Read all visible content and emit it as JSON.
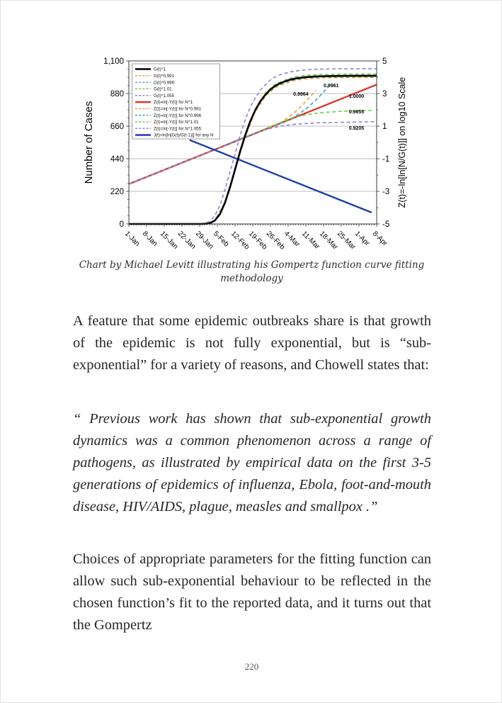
{
  "page": {
    "number": "220"
  },
  "figure": {
    "caption": "Chart by Michael Levitt illustrating his Gompertz function curve fitting methodology"
  },
  "paragraphs": {
    "p1": "A feature that some epidemic outbreaks share is that growth of the epidemic is not fully exponential, but is “sub-exponential” for a variety of reasons, and Chowell states that:",
    "quote": "“ Previous work has shown that sub-exponential growth dynamics was a common phenomenon across a range of pathogens, as illustrated by empirical data on the first 3-5 generations of epidemics of influenza, Ebola, foot-and-mouth disease, HIV/AIDS, plague, measles and smallpox .”",
    "p3": "Choices of appropriate parameters for the fitting function can allow such sub-exponential behaviour to be reflected in the chosen function’s fit to the reported data, and it turns out that the Gompertz"
  },
  "chart_data": {
    "type": "line",
    "x_axis": {
      "labels": [
        "1-Jan",
        "8-Jan",
        "15-Jan",
        "22-Jan",
        "29-Jan",
        "5-Feb",
        "12-Feb",
        "19-Feb",
        "26-Feb",
        "4-Mar",
        "11-Mar",
        "18-Mar",
        "25-Mar",
        "1-Apr",
        "8-Apr"
      ],
      "range_days": [
        0,
        98
      ],
      "major_step_days": 7,
      "minor_step_days": 1
    },
    "y_left": {
      "title": "Number of Cases",
      "tick_labels": [
        "0",
        "220",
        "440",
        "660",
        "880",
        "1,100"
      ],
      "tick_values": [
        0,
        220,
        440,
        660,
        880,
        1100
      ],
      "grid_values": [
        220,
        440,
        660,
        880
      ],
      "minor_step": 55,
      "range": [
        0,
        1100
      ]
    },
    "y_right": {
      "title": "Z(t)=-ln[ln[N/G(t)]] on log10 Scale",
      "tick_labels": [
        "-5",
        "-3",
        "-1",
        "1",
        "3",
        "5"
      ],
      "tick_values": [
        -5,
        -3,
        -1,
        1,
        3,
        5
      ],
      "minor_values": [
        -4,
        -2,
        0,
        2,
        4
      ],
      "range": [
        -5,
        5
      ]
    },
    "grid": "horizontal-only",
    "legend_position": "upper-left-inside",
    "series": [
      {
        "name": "G(t)^1",
        "color": "#000000",
        "width": 2.6,
        "dash": null,
        "axis": "cases",
        "draw": 11,
        "points": [
          [
            0,
            0
          ],
          [
            20,
            0
          ],
          [
            26,
            0
          ],
          [
            28,
            0
          ],
          [
            30,
            1
          ],
          [
            32,
            5
          ],
          [
            34,
            23
          ],
          [
            36,
            66
          ],
          [
            38,
            143
          ],
          [
            40,
            248
          ],
          [
            42,
            368
          ],
          [
            44,
            489
          ],
          [
            46,
            598
          ],
          [
            48,
            692
          ],
          [
            50,
            768
          ],
          [
            52,
            828
          ],
          [
            54,
            873
          ],
          [
            56,
            908
          ],
          [
            58,
            933
          ],
          [
            60,
            951
          ],
          [
            63,
            970
          ],
          [
            66,
            982
          ],
          [
            70,
            991
          ],
          [
            75,
            996
          ],
          [
            80,
            998
          ],
          [
            86,
            999
          ],
          [
            92,
            1000
          ],
          [
            98,
            1000
          ]
        ]
      },
      {
        "name": "G(t)^0.991",
        "color": "#E9A23B",
        "width": 1.6,
        "dash": "5,3.5",
        "axis": "cases",
        "draw": 10,
        "points": [
          [
            0,
            0
          ],
          [
            26,
            0
          ],
          [
            30,
            1
          ],
          [
            34,
            22
          ],
          [
            38,
            141
          ],
          [
            42,
            364
          ],
          [
            46,
            591
          ],
          [
            50,
            759
          ],
          [
            54,
            862
          ],
          [
            58,
            922
          ],
          [
            62,
            950
          ],
          [
            66,
            970
          ],
          [
            70,
            979
          ],
          [
            76,
            985
          ],
          [
            84,
            987
          ],
          [
            92,
            988
          ],
          [
            98,
            988
          ]
        ]
      },
      {
        "name": "G(t)^0.996",
        "color": "#5FA8DC",
        "width": 1.6,
        "dash": "5,3.5",
        "axis": "cases",
        "draw": 9,
        "points": [
          [
            0,
            0
          ],
          [
            26,
            0
          ],
          [
            30,
            1
          ],
          [
            34,
            23
          ],
          [
            38,
            142
          ],
          [
            42,
            366
          ],
          [
            46,
            595
          ],
          [
            50,
            764
          ],
          [
            54,
            869
          ],
          [
            58,
            928
          ],
          [
            62,
            957
          ],
          [
            66,
            977
          ],
          [
            70,
            986
          ],
          [
            76,
            992
          ],
          [
            84,
            994
          ],
          [
            92,
            995
          ],
          [
            98,
            995
          ]
        ]
      },
      {
        "name": "G(t)^1.01",
        "color": "#63D24B",
        "width": 1.6,
        "dash": "5,3.5",
        "axis": "cases",
        "draw": 8,
        "points": [
          [
            0,
            0
          ],
          [
            26,
            0
          ],
          [
            30,
            1
          ],
          [
            34,
            23
          ],
          [
            38,
            145
          ],
          [
            42,
            372
          ],
          [
            46,
            605
          ],
          [
            50,
            777
          ],
          [
            54,
            883
          ],
          [
            58,
            944
          ],
          [
            62,
            973
          ],
          [
            66,
            994
          ],
          [
            70,
            1003
          ],
          [
            76,
            1009
          ],
          [
            84,
            1011
          ],
          [
            92,
            1012
          ],
          [
            98,
            1012
          ]
        ]
      },
      {
        "name": "G(t)^1.055",
        "color": "#9583D6",
        "width": 1.6,
        "dash": "5,3.5",
        "axis": "cases",
        "draw": 7,
        "points": [
          [
            0,
            0
          ],
          [
            24,
            0
          ],
          [
            28,
            1
          ],
          [
            30,
            3
          ],
          [
            32,
            17
          ],
          [
            34,
            55
          ],
          [
            36,
            126
          ],
          [
            38,
            230
          ],
          [
            40,
            353
          ],
          [
            42,
            470
          ],
          [
            44,
            600
          ],
          [
            46,
            702
          ],
          [
            48,
            787
          ],
          [
            50,
            850
          ],
          [
            52,
            904
          ],
          [
            54,
            940
          ],
          [
            56,
            972
          ],
          [
            58,
            992
          ],
          [
            60,
            1008
          ],
          [
            64,
            1027
          ],
          [
            68,
            1037
          ],
          [
            74,
            1044
          ],
          [
            84,
            1047
          ],
          [
            98,
            1048
          ]
        ]
      },
      {
        "name": "Z(t)=ln[-Y(t)] for N^1",
        "color": "#D43A2F",
        "width": 2.4,
        "dash": null,
        "axis": "z",
        "draw": 1,
        "points": [
          [
            0,
            -2.55
          ],
          [
            98,
            3.55
          ]
        ]
      },
      {
        "name": "Z(t)=ln[-Y(t)] for N^0.991",
        "color": "#E9A23B",
        "width": 1.6,
        "dash": "5,3.5",
        "axis": "z",
        "draw": 3,
        "points": [
          [
            0,
            -2.55
          ],
          [
            56,
            0.95
          ],
          [
            60,
            1.22
          ],
          [
            63,
            1.52
          ],
          [
            66,
            1.9
          ],
          [
            69,
            2.35
          ],
          [
            72,
            2.85
          ],
          [
            74,
            3.2
          ]
        ]
      },
      {
        "name": "Z(t)=ln[-Y(t)] for N^0.996",
        "color": "#3FA5B5",
        "width": 1.6,
        "dash": "5,3.5",
        "axis": "z",
        "draw": 2,
        "points": [
          [
            0,
            -2.55
          ],
          [
            62,
            1.3
          ],
          [
            66,
            1.62
          ],
          [
            70,
            2.05
          ],
          [
            74,
            2.6
          ],
          [
            77,
            3.1
          ],
          [
            79,
            3.45
          ]
        ]
      },
      {
        "name": "Z(t)=ln[-Y(t)] for N^1.01",
        "color": "#63D24B",
        "width": 1.6,
        "dash": "5,3.5",
        "axis": "z",
        "draw": 4,
        "points": [
          [
            0,
            -2.55
          ],
          [
            54,
            0.85
          ],
          [
            58,
            1.1
          ],
          [
            62,
            1.35
          ],
          [
            66,
            1.55
          ],
          [
            70,
            1.7
          ],
          [
            76,
            1.83
          ],
          [
            84,
            1.91
          ],
          [
            96,
            1.97
          ]
        ]
      },
      {
        "name": "Z(t)=ln[-Y(t)] for N^1.055",
        "color": "#9583D6",
        "width": 1.6,
        "dash": "5,3.5",
        "axis": "z",
        "draw": 5,
        "points": [
          [
            0,
            -2.55
          ],
          [
            48,
            0.45
          ],
          [
            52,
            0.68
          ],
          [
            56,
            0.86
          ],
          [
            60,
            1.0
          ],
          [
            66,
            1.12
          ],
          [
            74,
            1.2
          ],
          [
            98,
            1.28
          ]
        ]
      },
      {
        "name": "J(t)=ln[ln[G(t)/G(t-1)]] for any N",
        "color": "#1F3FA8",
        "width": 2.4,
        "dash": null,
        "axis": "z",
        "draw": 6,
        "points": [
          [
            24,
            0.15
          ],
          [
            96,
            -4.3
          ]
        ]
      }
    ],
    "annotations": [
      {
        "text": "0.9964",
        "t": 68,
        "z": 2.96
      },
      {
        "text": "0.9961",
        "t": 80,
        "z": 3.48
      },
      {
        "text": "1.0000",
        "t": 90,
        "z": 2.82
      },
      {
        "text": "0.9655",
        "t": 90,
        "z": 1.87
      },
      {
        "text": "0.9205",
        "t": 90,
        "z": 0.87
      }
    ]
  }
}
